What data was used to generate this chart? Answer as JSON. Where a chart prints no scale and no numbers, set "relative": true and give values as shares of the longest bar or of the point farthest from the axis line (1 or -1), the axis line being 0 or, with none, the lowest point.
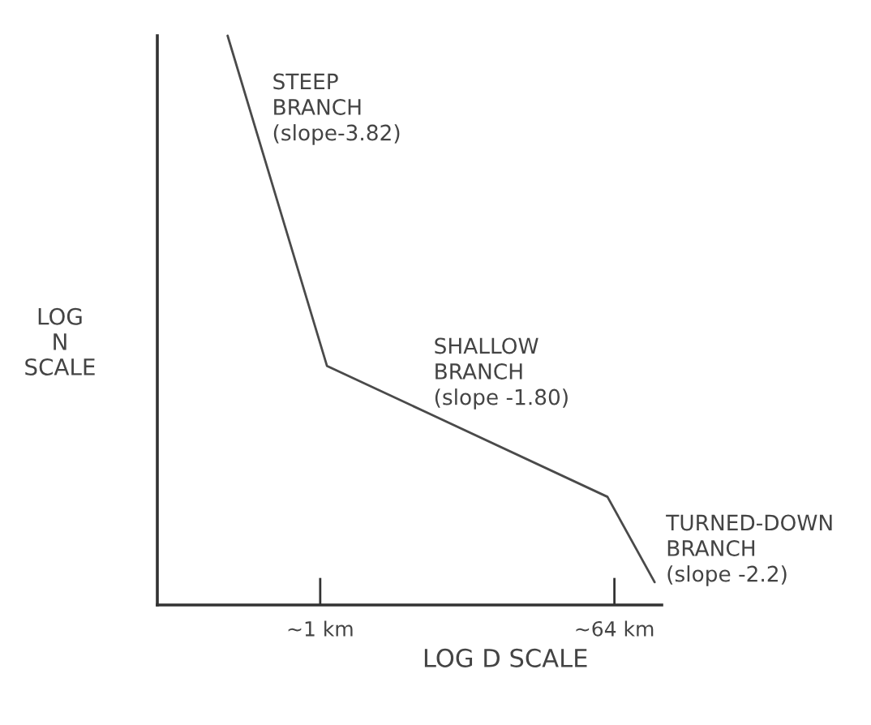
{
  "chart_data": {
    "type": "line",
    "relative": true,
    "log": "x",
    "xlabel": "LOG D SCALE",
    "ylabel": "LOG\nN\nSCALE",
    "x": [
      0.27,
      1.1,
      58,
      113
    ],
    "series": [
      {
        "color": "#4a4a4a",
        "values": [
          1,
          0.42,
          0.19,
          0.04
        ]
      }
    ],
    "xlim": [
      0.1,
      125
    ],
    "xticks": [
      {
        "value": 1,
        "label": "~1 km"
      },
      {
        "value": 64,
        "label": "~64 km"
      }
    ],
    "annotations": [
      "STEEP\nBRANCH\n(slope-3.82)",
      "SHALLOW\nBRANCH\n(slope -1.80)",
      "TURNED-DOWN\nBRANCH\n(slope -2.2)"
    ]
  }
}
